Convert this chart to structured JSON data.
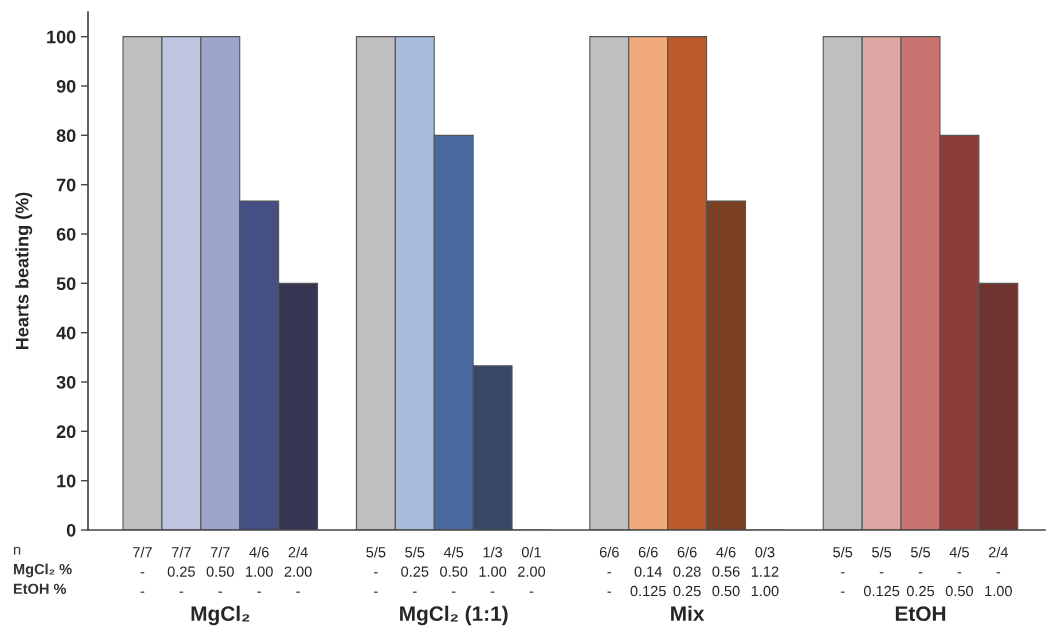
{
  "chart_data": {
    "type": "bar",
    "ylabel": "Hearts beating (%)",
    "categories": [
      "7/7\n-\n-",
      "7/7\n0.25\n-",
      "7/7\n0.50\n-",
      "4/6\n1.00\n-",
      "2/4\n2.00\n-",
      null,
      "5/5\n-\n-",
      "5/5\n0.25\n-",
      "4/5\n0.50\n-",
      "1/3\n1.00\n-",
      "0/1\n2.00\n-",
      null,
      "6/6\n-\n-",
      "6/6\n0.14\n0.125",
      "6/6\n0.28\n0.25",
      "4/6\n0.56\n0.50",
      "0/3\n1.12\n1.00",
      null,
      "5/5\n-\n-",
      "5/5\n-\n0.125",
      "5/5\n-\n0.25",
      "4/5\n-\n0.50",
      "2/4\n-\n1.00"
    ],
    "values": [
      100,
      100,
      100,
      66.7,
      50,
      null,
      100,
      100,
      80,
      33.3,
      0,
      null,
      100,
      100,
      100,
      66.7,
      0,
      null,
      100,
      100,
      100,
      80,
      50
    ],
    "colors": [
      "#bfbfbf",
      "#bfc4e2",
      "#9ca6cc",
      "#454f83",
      "#363653",
      null,
      "#bfbfbf",
      "#a9bcdd",
      "#4a69a1",
      "#364865",
      "#364865",
      null,
      "#bfbfbf",
      "#f0aa7e",
      "#bc5a2c",
      "#7c4025",
      "#7c4025",
      null,
      "#bfbfbf",
      "#dea6a2",
      "#c97470",
      "#8e3c3a",
      "#6f3330"
    ],
    "ylim": [
      0,
      105
    ],
    "yticks": [
      0,
      10,
      20,
      30,
      40,
      50,
      60,
      70,
      80,
      90,
      100
    ],
    "grid": false,
    "annotations": [
      "n",
      "MgCl₂ %",
      "EtOH %",
      "MgCl₂",
      "MgCl₂ (1:1)",
      "Mix",
      "EtOH"
    ]
  }
}
